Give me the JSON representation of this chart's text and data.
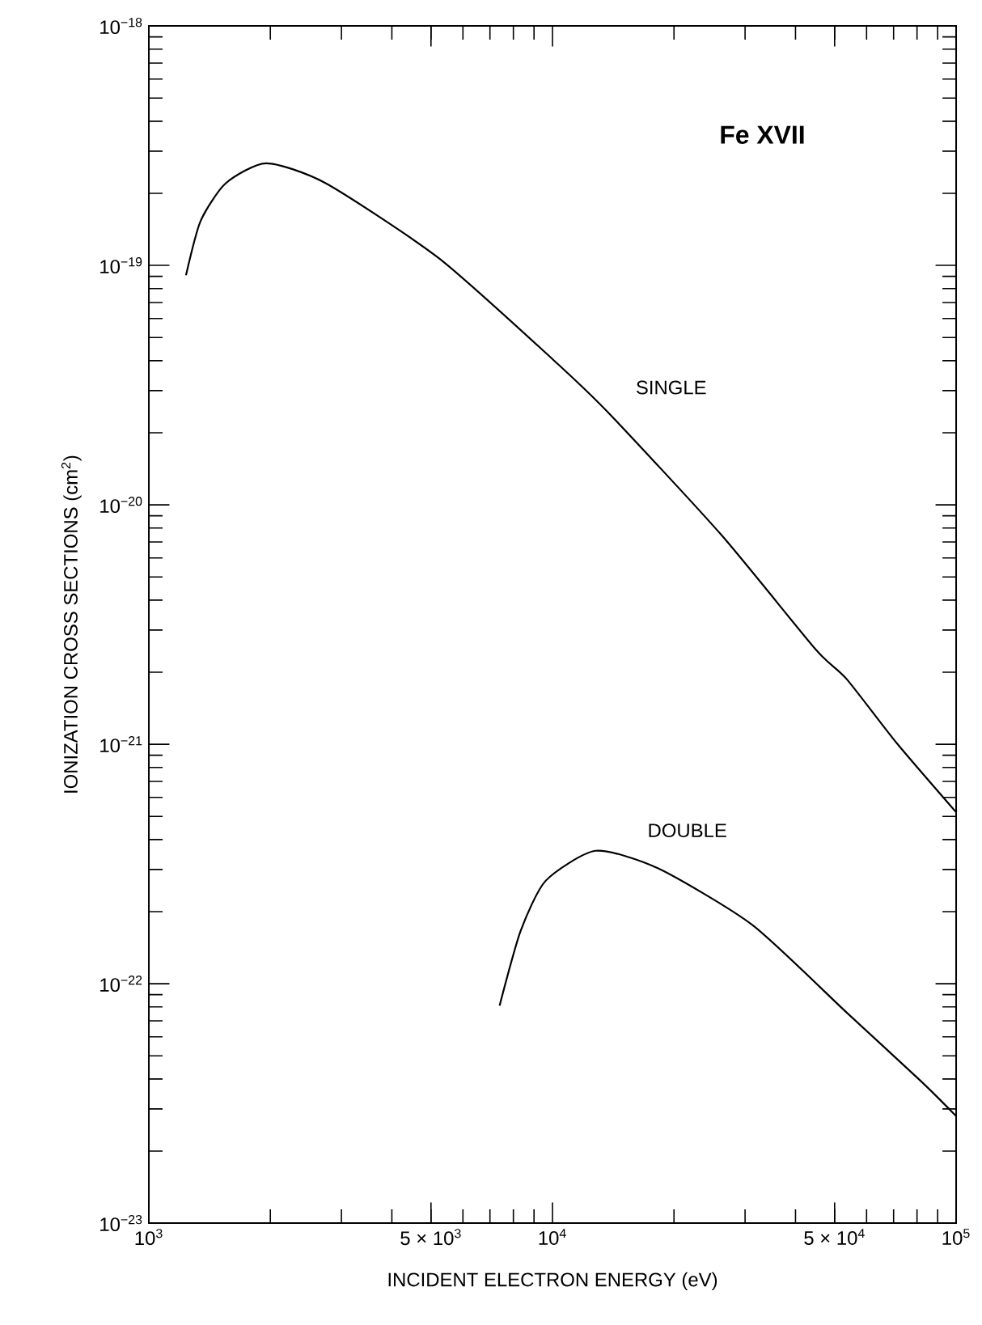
{
  "chart_data": {
    "type": "line",
    "log": "xy",
    "xlabel": "INCIDENT ELECTRON ENERGY (eV)",
    "ylabel": "IONIZATION CROSS SECTIONS (cm$^{2}$)",
    "annotations": [
      "Fe XVII"
    ],
    "xlim": [
      1000,
      100000
    ],
    "ylim": [
      1e-23,
      1e-18
    ],
    "xticks": [
      {
        "value": 1000,
        "label": "10$^{3}$"
      },
      {
        "value": 5000,
        "label": "5 × 10$^{3}$"
      },
      {
        "value": 10000,
        "label": "10$^{4}$"
      },
      {
        "value": 50000,
        "label": "5 × 10$^{4}$"
      },
      {
        "value": 100000,
        "label": "10$^{5}$"
      }
    ],
    "yticks": [
      {
        "value": 1e-23,
        "label": "10$^{−23}$"
      },
      {
        "value": 1e-22,
        "label": "10$^{−22}$"
      },
      {
        "value": 1e-21,
        "label": "10$^{−21}$"
      },
      {
        "value": 1e-20,
        "label": "10$^{−20}$"
      },
      {
        "value": 1e-19,
        "label": "10$^{−19}$"
      },
      {
        "value": 1e-18,
        "label": "10$^{−18}$"
      }
    ],
    "grid": false,
    "legend": false,
    "marker": "none",
    "line_style": "solid",
    "series": [
      {
        "name": "SINGLE",
        "color": "#000000",
        "x": [
          1236,
          1343,
          1549,
          1954,
          2748,
          5236,
          10000,
          13740,
          26180,
          44770,
          53580,
          71290,
          100000
        ],
        "values": [
          9.1e-20,
          1.53e-19,
          2.2e-19,
          2.67e-19,
          2.2e-19,
          1.07e-19,
          4.06e-20,
          2.43e-20,
          7.5e-21,
          2.5e-21,
          1.87e-21,
          1.01e-21,
          5.2e-22
        ]
      },
      {
        "name": "DOUBLE",
        "color": "#000000",
        "x": [
          7396,
          8337,
          9616,
          12790,
          18280,
          31260,
          53460,
          82040,
          100000
        ],
        "values": [
          8.1e-23,
          1.66e-22,
          2.69e-22,
          3.59e-22,
          3.03e-22,
          1.76e-22,
          7.6e-23,
          3.9e-23,
          2.8e-23
        ]
      }
    ]
  }
}
